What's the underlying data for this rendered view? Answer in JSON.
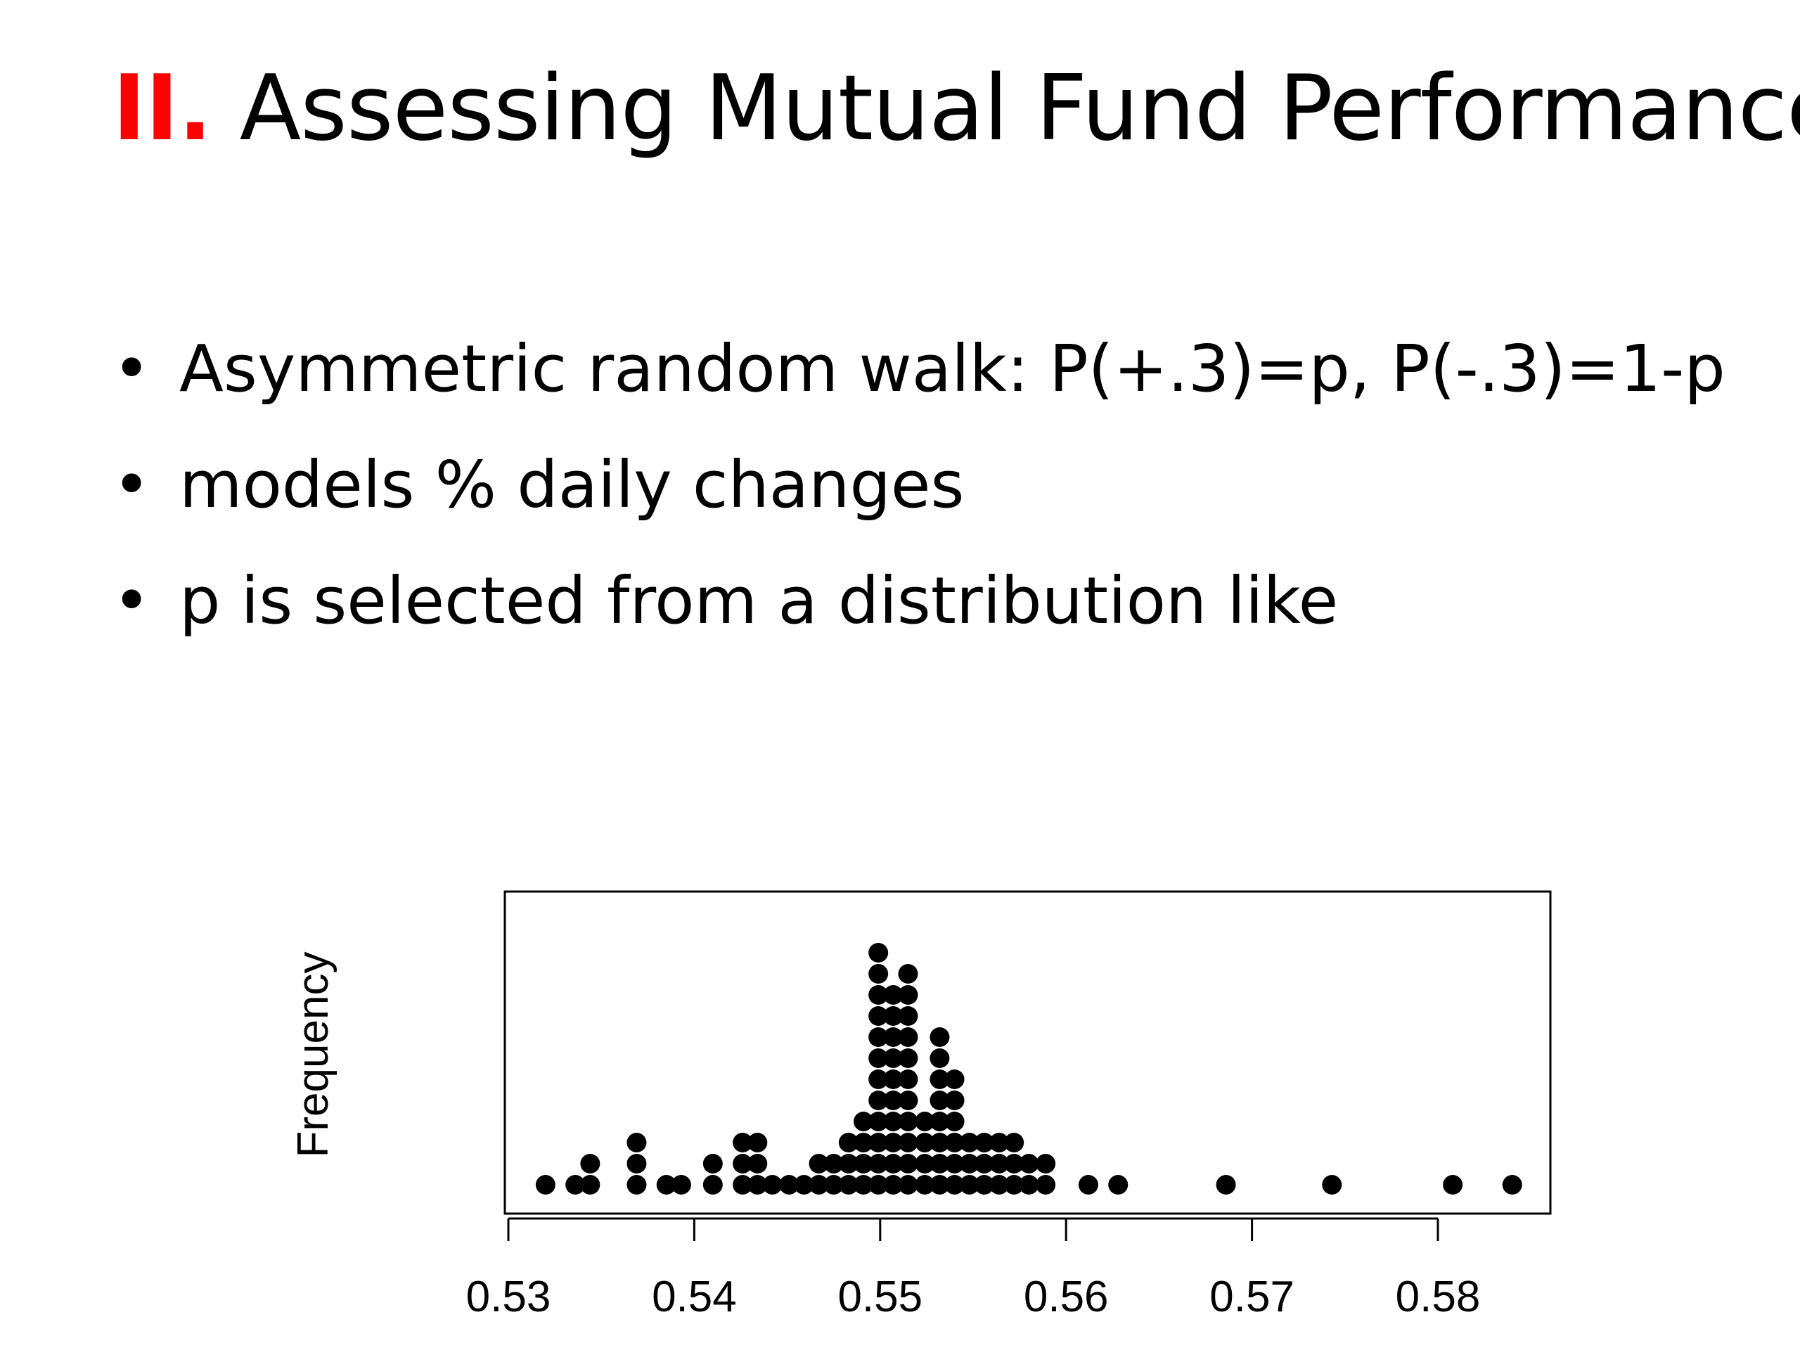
{
  "slide": {
    "title_numeral": "II.",
    "title_text": "Assessing Mutual Fund Performance",
    "bullet_symbol": "•",
    "bullets": [
      "Asymmetric random walk: P(+.3)=p, P(-.3)=1-p",
      "models % daily changes",
      "p is selected from a distribution like"
    ]
  },
  "colors": {
    "title_accent": "#ff0000",
    "dots": "#000000"
  },
  "chart_data": {
    "type": "scatter",
    "subtype": "dot-plot",
    "ylabel": "Frequency",
    "xlabel": "",
    "xlim": [
      0.53,
      0.585
    ],
    "xticks": [
      0.53,
      0.54,
      0.55,
      0.56,
      0.57,
      0.58
    ],
    "xtick_labels": [
      "0.53",
      "0.54",
      "0.55",
      "0.56",
      "0.57",
      "0.58"
    ],
    "grid": false,
    "points": [
      {
        "x": 0.532,
        "count": 1
      },
      {
        "x": 0.5336,
        "count": 1
      },
      {
        "x": 0.5344,
        "count": 2
      },
      {
        "x": 0.5369,
        "count": 3
      },
      {
        "x": 0.5385,
        "count": 1
      },
      {
        "x": 0.5393,
        "count": 1
      },
      {
        "x": 0.541,
        "count": 2
      },
      {
        "x": 0.5426,
        "count": 3
      },
      {
        "x": 0.5434,
        "count": 3
      },
      {
        "x": 0.5442,
        "count": 1
      },
      {
        "x": 0.5451,
        "count": 1
      },
      {
        "x": 0.5459,
        "count": 1
      },
      {
        "x": 0.5467,
        "count": 2
      },
      {
        "x": 0.5475,
        "count": 2
      },
      {
        "x": 0.5483,
        "count": 3
      },
      {
        "x": 0.5491,
        "count": 4
      },
      {
        "x": 0.5499,
        "count": 12
      },
      {
        "x": 0.5507,
        "count": 10
      },
      {
        "x": 0.5515,
        "count": 11
      },
      {
        "x": 0.5524,
        "count": 4
      },
      {
        "x": 0.5532,
        "count": 8
      },
      {
        "x": 0.554,
        "count": 6
      },
      {
        "x": 0.5548,
        "count": 3
      },
      {
        "x": 0.5556,
        "count": 3
      },
      {
        "x": 0.5564,
        "count": 3
      },
      {
        "x": 0.5572,
        "count": 3
      },
      {
        "x": 0.558,
        "count": 2
      },
      {
        "x": 0.5589,
        "count": 2
      },
      {
        "x": 0.5612,
        "count": 1
      },
      {
        "x": 0.5628,
        "count": 1
      },
      {
        "x": 0.5686,
        "count": 1
      },
      {
        "x": 0.5743,
        "count": 1
      },
      {
        "x": 0.5808,
        "count": 1
      },
      {
        "x": 0.584,
        "count": 1
      }
    ]
  }
}
